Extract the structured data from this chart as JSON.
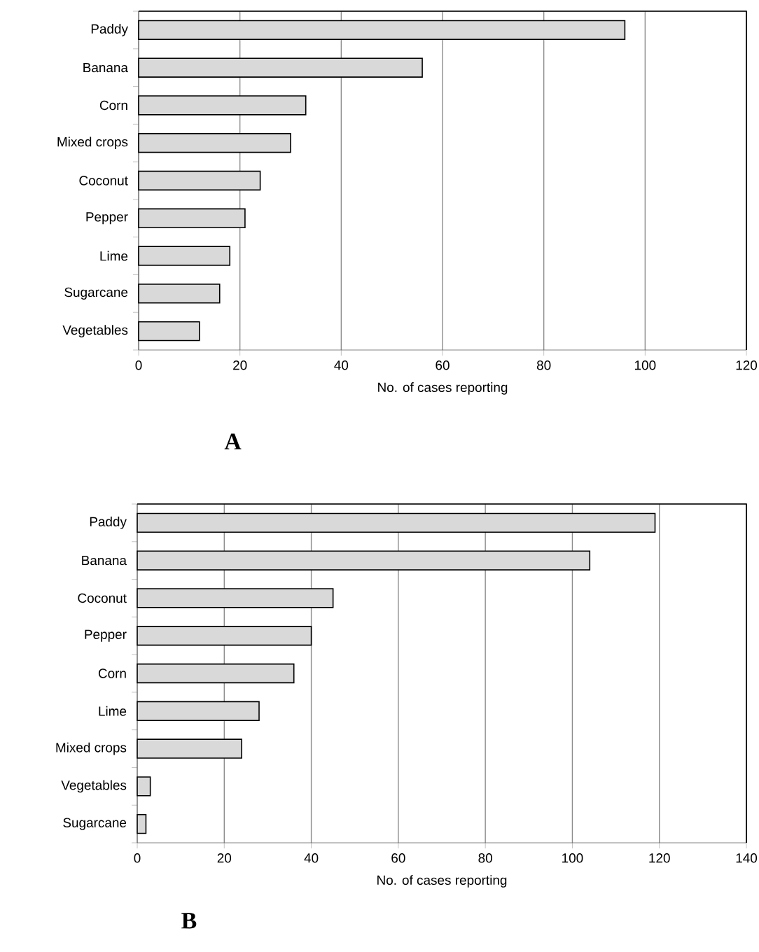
{
  "chart_data": [
    {
      "type": "bar",
      "orientation": "horizontal",
      "categories": [
        "Paddy",
        "Banana",
        "Corn",
        "Mixed crops",
        "Coconut",
        "Pepper",
        "Lime",
        "Sugarcane",
        "Vegetables"
      ],
      "values": [
        96,
        56,
        33,
        30,
        24,
        21,
        18,
        16,
        12
      ],
      "color": "#d9d9d9",
      "xlim": [
        0,
        120
      ],
      "xticks": [
        0,
        20,
        40,
        60,
        80,
        100,
        120
      ],
      "xlabel": "No. of cases reporting",
      "grid": "x",
      "annotations": [
        "A"
      ]
    },
    {
      "type": "bar",
      "orientation": "horizontal",
      "categories": [
        "Paddy",
        "Banana",
        "Coconut",
        "Pepper",
        "Corn",
        "Lime",
        "Mixed crops",
        "Vegetables",
        "Sugarcane"
      ],
      "values": [
        119,
        104,
        45,
        40,
        36,
        28,
        24,
        3,
        2
      ],
      "color": "#d9d9d9",
      "xlim": [
        0,
        140
      ],
      "xticks": [
        0,
        20,
        40,
        60,
        80,
        100,
        120,
        140
      ],
      "xlabel": "No. of cases reporting",
      "grid": "x",
      "annotations": [
        "B"
      ]
    }
  ]
}
